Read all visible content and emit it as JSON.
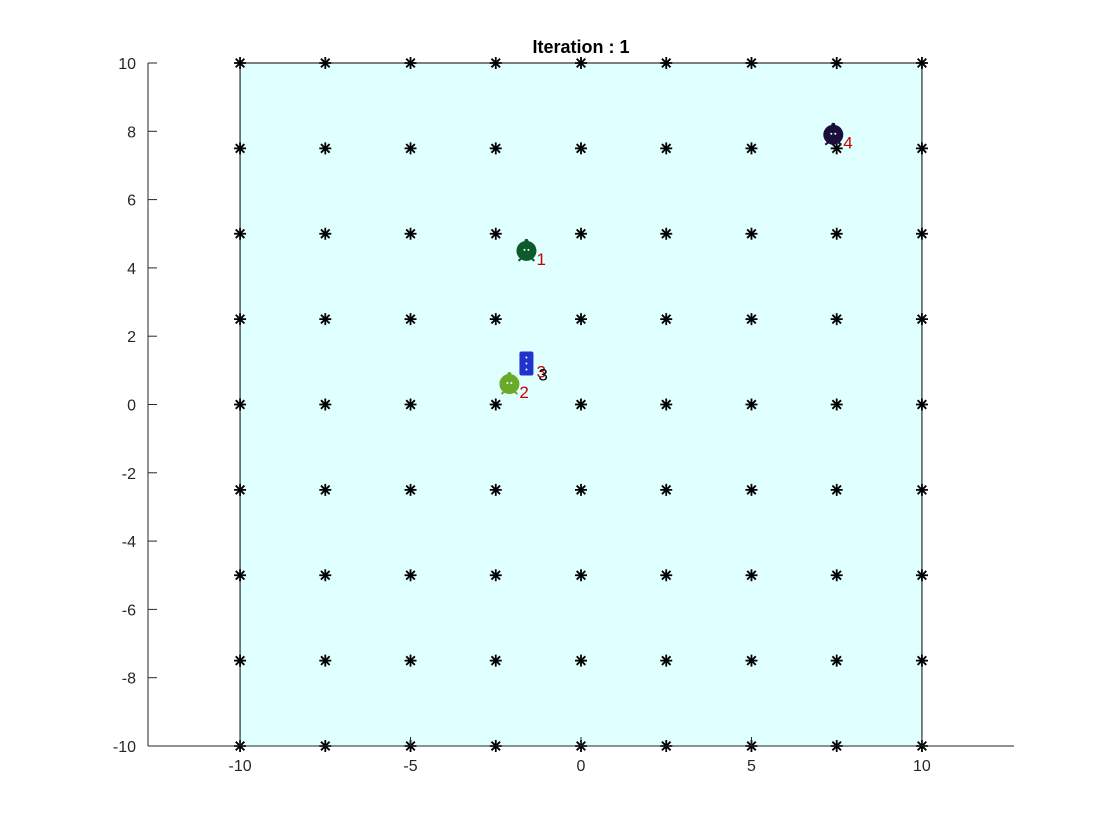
{
  "chart_data": {
    "type": "scatter",
    "title": "Iteration : 1",
    "xlabel": "",
    "ylabel": "",
    "xlim": [
      -12.7,
      12.7
    ],
    "ylim": [
      -10,
      10
    ],
    "xticks": [
      -10,
      -5,
      0,
      5,
      10
    ],
    "yticks": [
      -10,
      -8,
      -6,
      -4,
      -2,
      0,
      2,
      4,
      6,
      8,
      10
    ],
    "xtick_labels": [
      "-10",
      "-5",
      "0",
      "5",
      "10"
    ],
    "ytick_labels": [
      "-10",
      "-8",
      "-6",
      "-4",
      "-2",
      "0",
      "2",
      "4",
      "6",
      "8",
      "10"
    ],
    "grid": false,
    "box": "axes-left-bottom",
    "region": {
      "x": [
        -10,
        10
      ],
      "y": [
        -10,
        10
      ],
      "fill": "#e0ffff",
      "edge": "#000000"
    },
    "grid_points": {
      "marker": "*",
      "color": "#000000",
      "x": [
        -10,
        -7.5,
        -5,
        -2.5,
        0,
        2.5,
        5,
        7.5,
        10
      ],
      "y": [
        -10,
        -7.5,
        -5,
        -2.5,
        0,
        2.5,
        5,
        7.5,
        10
      ]
    },
    "robots": [
      {
        "label": "1",
        "x": -1.6,
        "y": 4.5,
        "shape": "round",
        "color": "#0d5a2c",
        "label_color": "#cc0000"
      },
      {
        "label": "2",
        "x": -2.1,
        "y": 0.6,
        "shape": "round",
        "color": "#6aaa2a",
        "label_color": "#cc0000"
      },
      {
        "label": "3",
        "x": -1.6,
        "y": 1.2,
        "shape": "square",
        "color": "#2233cc",
        "label_color": "#cc0000"
      },
      {
        "label": "4",
        "x": 7.4,
        "y": 7.9,
        "shape": "round",
        "color": "#1a0f3a",
        "label_color": "#cc0000"
      }
    ],
    "extra_labels": [
      {
        "text": "3",
        "x": -1.25,
        "y": 0.7,
        "color": "#000000"
      }
    ]
  }
}
